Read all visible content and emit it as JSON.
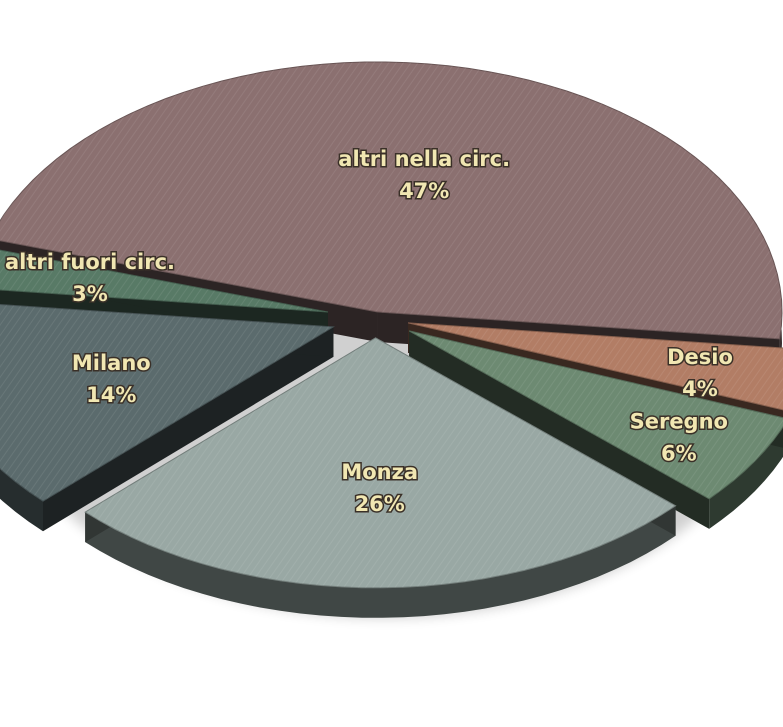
{
  "chart_data": {
    "type": "pie",
    "title": "",
    "unit": "%",
    "slices": [
      {
        "label": "altri nella circ.",
        "value": 47,
        "display": "47%",
        "color": "#8b7070"
      },
      {
        "label": "Desio",
        "value": 4,
        "display": "4%",
        "color": "#b27d65"
      },
      {
        "label": "Seregno",
        "value": 6,
        "display": "6%",
        "color": "#6d8a72"
      },
      {
        "label": "Monza",
        "value": 26,
        "display": "26%",
        "color": "#99a8a4"
      },
      {
        "label": "Milano",
        "value": 14,
        "display": "14%",
        "color": "#5b6b6d"
      },
      {
        "label": "altri fuori circ.",
        "value": 3,
        "display": "3%",
        "color": "#587a66"
      }
    ],
    "legend": "none",
    "style": "3d-exploded"
  }
}
